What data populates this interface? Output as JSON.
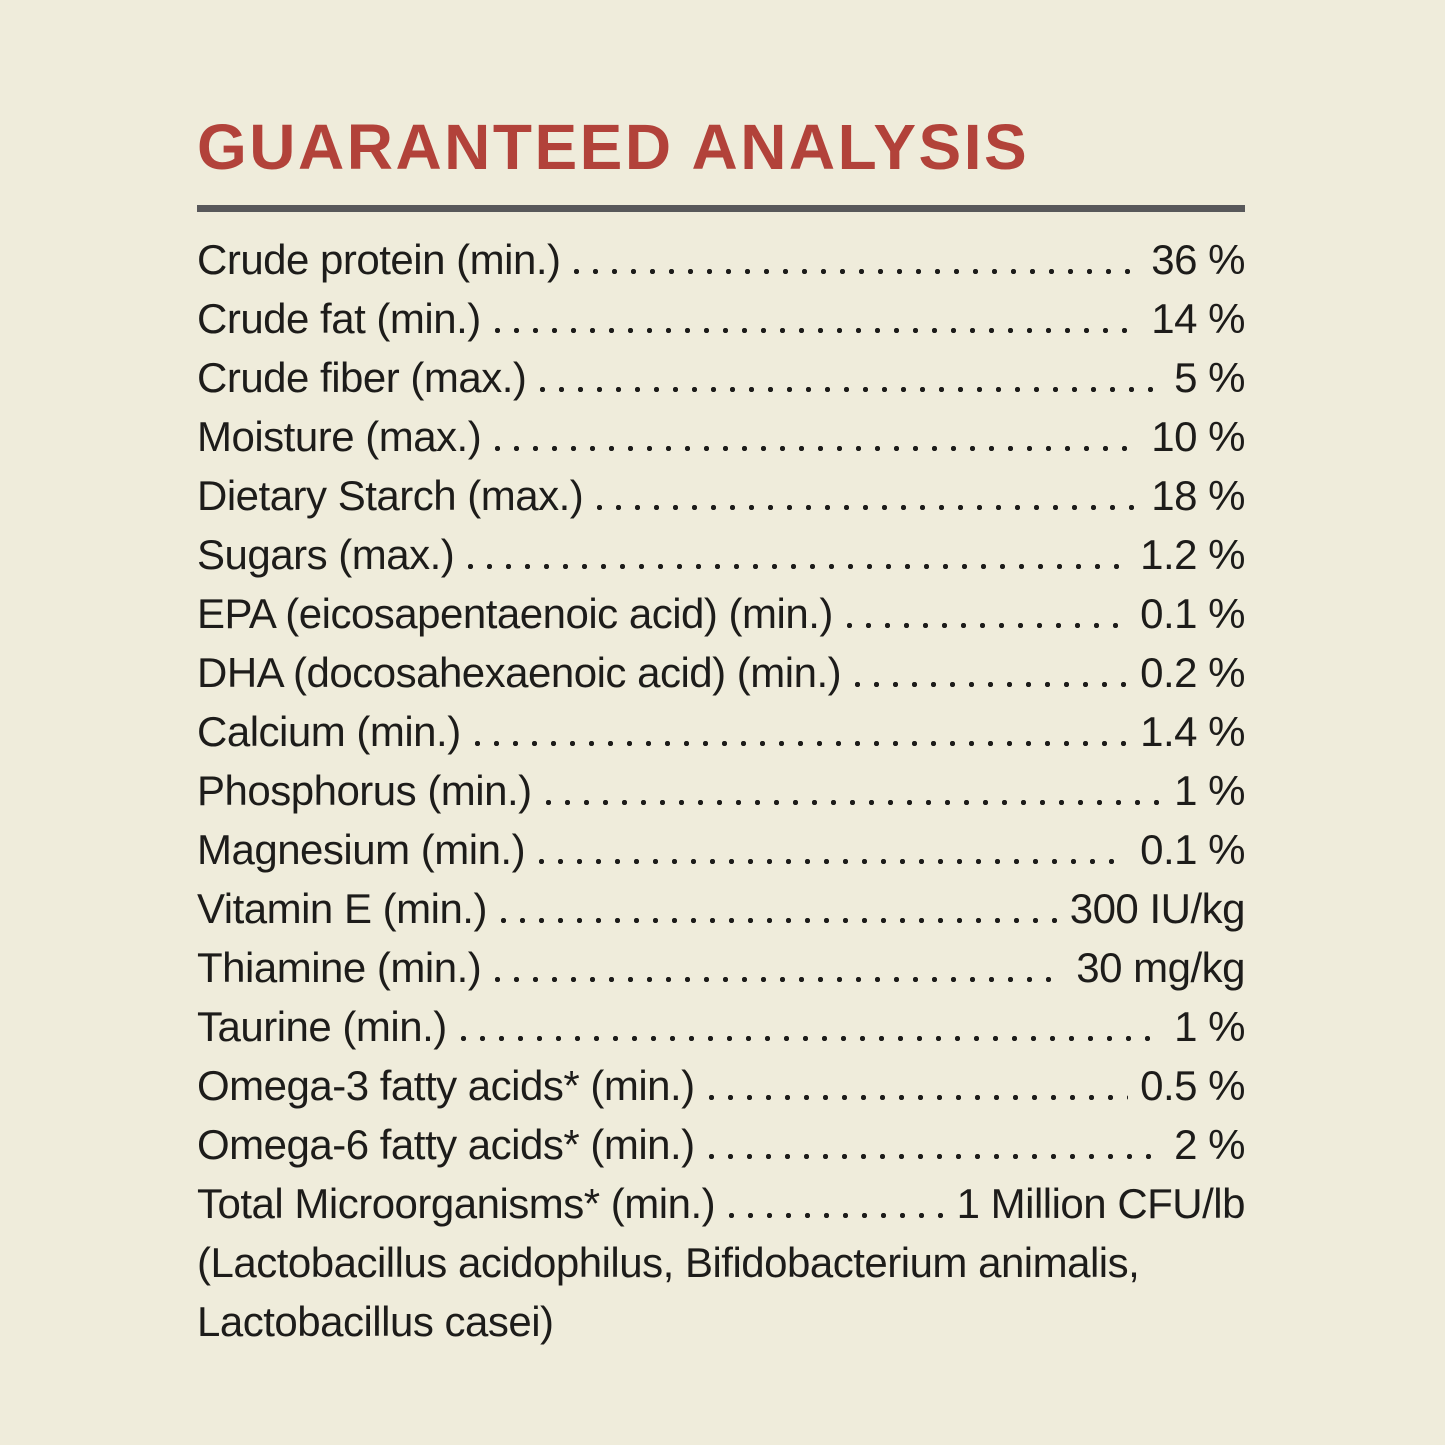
{
  "panel": {
    "title": "GUARANTEED ANALYSIS",
    "colors": {
      "background": "#efecdb",
      "title_red": "#b2423a",
      "text": "#1d1c1a",
      "divider_gray": "#58585a"
    }
  },
  "rows": [
    {
      "label": "Crude protein (min.)",
      "value": "36 %"
    },
    {
      "label": "Crude fat (min.)",
      "value": "14 %"
    },
    {
      "label": "Crude fiber (max.)",
      "value": "5 %"
    },
    {
      "label": "Moisture (max.)",
      "value": "10 %"
    },
    {
      "label": "Dietary Starch (max.)",
      "value": "18 %"
    },
    {
      "label": "Sugars (max.)",
      "value": "1.2 %"
    },
    {
      "label": "EPA (eicosapentaenoic acid) (min.)",
      "value": "0.1 %"
    },
    {
      "label": "DHA (docosahexaenoic acid) (min.)",
      "value": "0.2 %"
    },
    {
      "label": "Calcium (min.)",
      "value": "1.4 %"
    },
    {
      "label": "Phosphorus (min.)",
      "value": "1 %"
    },
    {
      "label": "Magnesium (min.)",
      "value": "0.1 %"
    },
    {
      "label": "Vitamin E (min.)",
      "value": "300 IU/kg"
    },
    {
      "label": "Thiamine (min.)",
      "value": "30 mg/kg"
    },
    {
      "label": "Taurine (min.)",
      "value": "1 %"
    },
    {
      "label": "Omega-3 fatty acids* (min.)",
      "value": "0.5 %"
    },
    {
      "label": "Omega-6 fatty acids* (min.)",
      "value": "2 %"
    },
    {
      "label": "Total Microorganisms* (min.)",
      "value": "1 Million CFU/lb"
    }
  ],
  "footnote": {
    "line1": "(Lactobacillus acidophilus, Bifidobacterium animalis,",
    "line2": "Lactobacillus casei)"
  }
}
